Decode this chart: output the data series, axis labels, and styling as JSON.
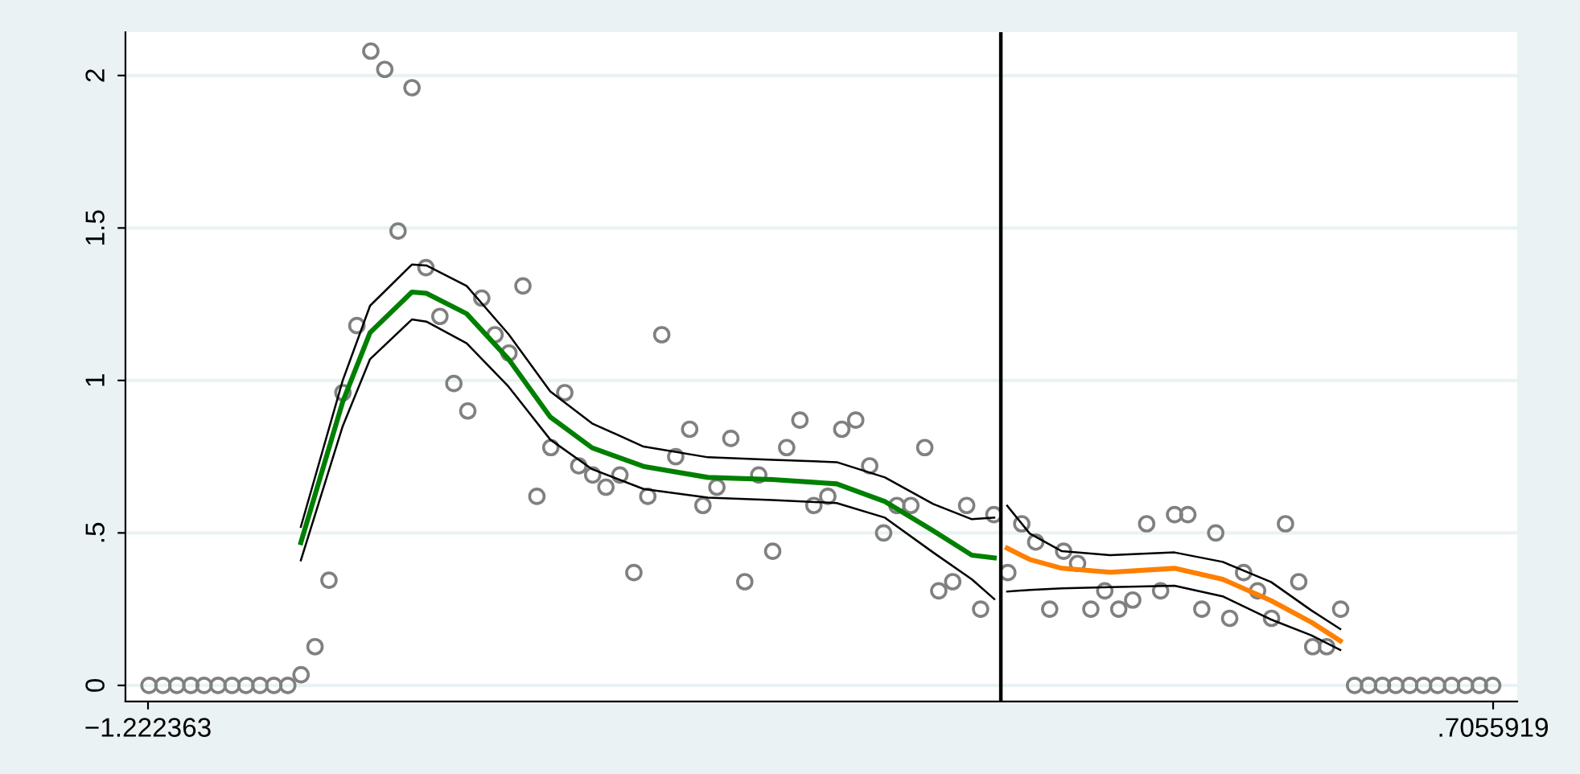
{
  "chart_data": {
    "type": "scatter",
    "xlim": [
      -1.2547,
      0.7402
    ],
    "ylim": [
      -0.053,
      2.142
    ],
    "xticks": [
      {
        "value": -1.222363,
        "label": "−1.222363"
      },
      {
        "value": 0.7055919,
        "label": ".7055919"
      }
    ],
    "yticks": [
      0,
      {
        "value": 0.5,
        "label": ".5"
      },
      1,
      1.5,
      2
    ],
    "grid": "y",
    "marker": "circle",
    "legend": false,
    "ref_lines": [
      {
        "axis": "x",
        "value": 0,
        "color": "#000000"
      }
    ],
    "series": [
      {
        "color": "#808080",
        "x": [
          -1.221,
          -1.201,
          -1.181,
          -1.161,
          -1.142,
          -1.122,
          -1.102,
          -1.082,
          -1.062,
          -1.042,
          -1.022,
          -1.003,
          -0.983,
          -0.963,
          -0.943,
          -0.923,
          -0.903,
          -0.883,
          -0.864,
          -0.844,
          -0.824,
          -0.804,
          -0.784,
          -0.764,
          -0.744,
          -0.725,
          -0.705,
          -0.685,
          -0.665,
          -0.645,
          -0.625,
          -0.605,
          -0.585,
          -0.566,
          -0.546,
          -0.526,
          -0.506,
          -0.486,
          -0.466,
          -0.446,
          -0.427,
          -0.407,
          -0.387,
          -0.367,
          -0.347,
          -0.327,
          -0.307,
          -0.288,
          -0.268,
          -0.248,
          -0.228,
          -0.208,
          -0.188,
          -0.168,
          -0.149,
          -0.129,
          -0.109,
          -0.089,
          -0.069,
          -0.049,
          -0.029,
          -0.01,
          0.01,
          0.03,
          0.05,
          0.07,
          0.09,
          0.11,
          0.129,
          0.149,
          0.169,
          0.189,
          0.209,
          0.229,
          0.249,
          0.268,
          0.288,
          0.308,
          0.328,
          0.348,
          0.368,
          0.388,
          0.408,
          0.427,
          0.447,
          0.467,
          0.487,
          0.507,
          0.527,
          0.547,
          0.566,
          0.586,
          0.606,
          0.626,
          0.646,
          0.666,
          0.686,
          0.705
        ],
        "values": [
          0,
          0,
          0,
          0,
          0,
          0,
          0,
          0,
          0,
          0,
          0,
          0.035,
          0.127,
          0.345,
          0.96,
          1.18,
          2.08,
          2.02,
          1.49,
          1.96,
          1.37,
          1.21,
          0.99,
          0.9,
          1.27,
          1.15,
          1.09,
          1.31,
          0.62,
          0.78,
          0.96,
          0.72,
          0.69,
          0.65,
          0.69,
          0.37,
          0.62,
          1.15,
          0.75,
          0.84,
          0.59,
          0.65,
          0.81,
          0.34,
          0.69,
          0.44,
          0.78,
          0.87,
          0.59,
          0.62,
          0.84,
          0.87,
          0.72,
          0.5,
          0.59,
          0.59,
          0.78,
          0.31,
          0.34,
          0.59,
          0.25,
          0.56,
          0.37,
          0.53,
          0.47,
          0.25,
          0.44,
          0.4,
          0.25,
          0.31,
          0.25,
          0.28,
          0.53,
          0.31,
          0.56,
          0.56,
          0.25,
          0.5,
          0.22,
          0.37,
          0.31,
          0.22,
          0.53,
          0.34,
          0.127,
          0.127,
          0.25,
          0,
          0,
          0,
          0,
          0,
          0,
          0,
          0,
          0,
          0,
          0
        ]
      },
      {
        "type": "line",
        "color": "#008000",
        "marker": "none",
        "x": [
          -1.0033,
          -0.9433,
          -0.9041,
          -0.8441,
          -0.8234,
          -0.7657,
          -0.7057,
          -0.6458,
          -0.5858,
          -0.5121,
          -0.4198,
          -0.3276,
          -0.2353,
          -0.1661,
          -0.097,
          -0.0416,
          -0.0094
        ],
        "values": [
          0.468,
          0.93,
          1.157,
          1.29,
          1.286,
          1.219,
          1.07,
          0.88,
          0.779,
          0.718,
          0.682,
          0.675,
          0.661,
          0.603,
          0.507,
          0.427,
          0.418
        ]
      },
      {
        "type": "line",
        "color": "#000000",
        "marker": "none",
        "x": [
          -1.0033,
          -0.9433,
          -0.9041,
          -0.8441,
          -0.8234,
          -0.7657,
          -0.7057,
          -0.6458,
          -0.5858,
          -0.5121,
          -0.4198,
          -0.3276,
          -0.2353,
          -0.1661,
          -0.097,
          -0.0416,
          -0.0094
        ],
        "values": [
          0.52,
          1.0,
          1.245,
          1.38,
          1.377,
          1.31,
          1.152,
          0.964,
          0.859,
          0.783,
          0.748,
          0.74,
          0.732,
          0.682,
          0.595,
          0.545,
          0.55
        ]
      },
      {
        "type": "line",
        "color": "#000000",
        "marker": "none",
        "x": [
          -1.0033,
          -0.9433,
          -0.9041,
          -0.8441,
          -0.8234,
          -0.7657,
          -0.7057,
          -0.6458,
          -0.5858,
          -0.5121,
          -0.4198,
          -0.3276,
          -0.2353,
          -0.1661,
          -0.097,
          -0.0416,
          -0.0094
        ],
        "values": [
          0.41,
          0.85,
          1.07,
          1.2,
          1.193,
          1.122,
          0.98,
          0.806,
          0.709,
          0.644,
          0.616,
          0.608,
          0.598,
          0.55,
          0.436,
          0.348,
          0.283
        ]
      },
      {
        "type": "line",
        "color": "#ff7f00",
        "marker": "none",
        "x": [
          0.0091,
          0.0414,
          0.0875,
          0.1567,
          0.2489,
          0.3181,
          0.3873,
          0.445,
          0.4865
        ],
        "values": [
          0.45,
          0.413,
          0.384,
          0.371,
          0.384,
          0.348,
          0.278,
          0.207,
          0.146
        ]
      },
      {
        "type": "line",
        "color": "#000000",
        "marker": "none",
        "x": [
          0.0091,
          0.0414,
          0.0875,
          0.1567,
          0.2489,
          0.3181,
          0.3873,
          0.445,
          0.4865
        ],
        "values": [
          0.589,
          0.498,
          0.44,
          0.427,
          0.436,
          0.405,
          0.339,
          0.246,
          0.185
        ]
      },
      {
        "type": "line",
        "color": "#000000",
        "marker": "none",
        "x": [
          0.0091,
          0.0414,
          0.0875,
          0.1567,
          0.2489,
          0.3181,
          0.3873,
          0.445,
          0.4865
        ],
        "values": [
          0.308,
          0.313,
          0.318,
          0.322,
          0.327,
          0.292,
          0.216,
          0.164,
          0.116
        ]
      }
    ]
  }
}
